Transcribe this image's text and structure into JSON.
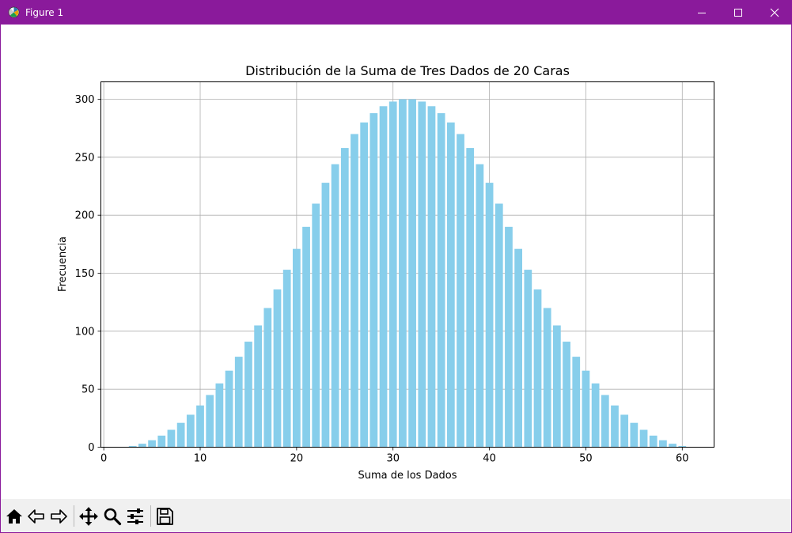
{
  "window": {
    "title": "Figure 1",
    "titlebar_color": "#8a1a9b",
    "icons": {
      "app": "matplotlib-logo-icon",
      "minimize": "minimize-icon",
      "maximize": "maximize-icon",
      "close": "close-icon"
    }
  },
  "toolbar": {
    "items": [
      {
        "name": "home-icon"
      },
      {
        "name": "back-arrow-icon"
      },
      {
        "name": "forward-arrow-icon"
      },
      {
        "name": "pan-move-icon"
      },
      {
        "name": "zoom-magnifier-icon"
      },
      {
        "name": "configure-subplots-icon"
      },
      {
        "name": "save-floppy-icon"
      }
    ]
  },
  "chart_data": {
    "type": "bar",
    "title": "Distribución de la Suma de Tres Dados de 20 Caras",
    "xlabel": "Suma de los Dados",
    "ylabel": "Frecuencia",
    "bar_color": "#87ceeb",
    "grid": true,
    "xlim": [
      -0.3,
      63.3
    ],
    "ylim": [
      0,
      315
    ],
    "xticks": [
      0,
      10,
      20,
      30,
      40,
      50,
      60
    ],
    "yticks": [
      0,
      50,
      100,
      150,
      200,
      250,
      300
    ],
    "x": [
      3,
      4,
      5,
      6,
      7,
      8,
      9,
      10,
      11,
      12,
      13,
      14,
      15,
      16,
      17,
      18,
      19,
      20,
      21,
      22,
      23,
      24,
      25,
      26,
      27,
      28,
      29,
      30,
      31,
      32,
      33,
      34,
      35,
      36,
      37,
      38,
      39,
      40,
      41,
      42,
      43,
      44,
      45,
      46,
      47,
      48,
      49,
      50,
      51,
      52,
      53,
      54,
      55,
      56,
      57,
      58,
      59,
      60
    ],
    "values": [
      1,
      3,
      6,
      10,
      15,
      21,
      28,
      36,
      45,
      55,
      66,
      78,
      91,
      105,
      120,
      136,
      153,
      171,
      190,
      210,
      228,
      244,
      258,
      270,
      280,
      288,
      294,
      298,
      300,
      300,
      298,
      294,
      288,
      280,
      270,
      258,
      244,
      228,
      210,
      190,
      171,
      153,
      136,
      120,
      105,
      91,
      78,
      66,
      55,
      45,
      36,
      28,
      21,
      15,
      10,
      6,
      3,
      1
    ]
  }
}
